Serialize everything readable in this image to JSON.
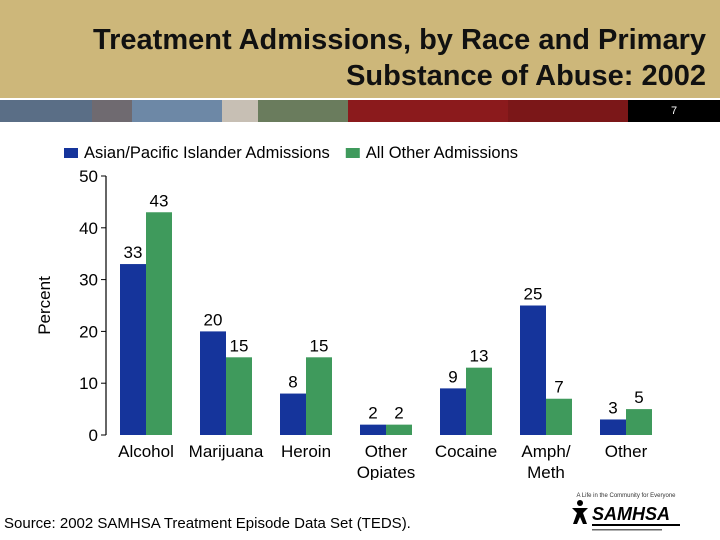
{
  "slide": {
    "title_line1": "Treatment Admissions, by Race and Primary",
    "title_line2": "Substance of Abuse: 2002",
    "slide_number": "7",
    "source": "Source: 2002 SAMHSA Treatment Episode Data Set (TEDS).",
    "logo_text": "SAMHSA",
    "logo_tagline": "A Life in the Community for Everyone"
  },
  "colors": {
    "header": "#cdb77a",
    "asian_series": "#15349b",
    "other_series": "#3f9a5c"
  },
  "chart_data": {
    "type": "bar",
    "title": "",
    "xlabel": "",
    "ylabel": "Percent",
    "ylim": [
      0,
      50
    ],
    "yticks": [
      0,
      10,
      20,
      30,
      40,
      50
    ],
    "categories": [
      "Alcohol",
      "Marijuana",
      "Heroin",
      "Other\nOpiates",
      "Cocaine",
      "Amph/\nMeth",
      "Other"
    ],
    "series": [
      {
        "name": "Asian/Pacific Islander Admissions",
        "color": "#15349b",
        "values": [
          33,
          20,
          8,
          2,
          9,
          25,
          3
        ]
      },
      {
        "name": "All Other Admissions",
        "color": "#3f9a5c",
        "values": [
          43,
          15,
          15,
          2,
          13,
          7,
          5
        ]
      }
    ],
    "legend_position": "top"
  }
}
